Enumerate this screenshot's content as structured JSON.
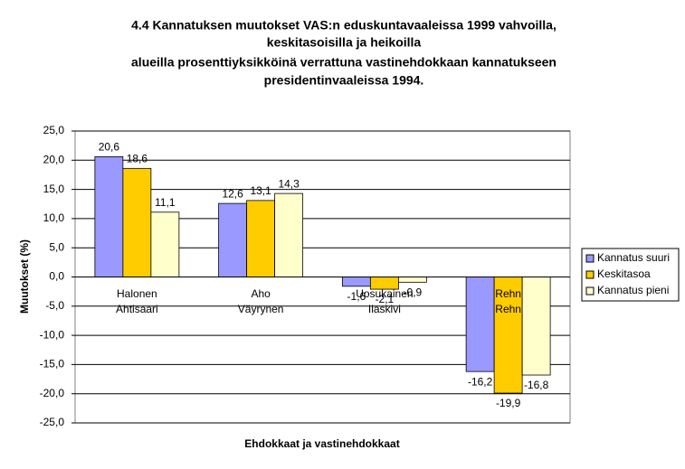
{
  "chart_data": {
    "type": "bar",
    "title": [
      "4.4 Kannatuksen muutokset VAS:n eduskuntavaaleissa 1999 vahvoilla,",
      "keskitasoisilla ja heikoilla",
      "alueilla prosenttiyksikköinä verrattuna vastinehdokkaan kannatukseen",
      "presidentinvaaleissa 1994."
    ],
    "x_label": "Ehdokkaat ja vastinehdokkaat",
    "y_label": "Muutokset (%)",
    "categories": [
      [
        "Halonen",
        "Ahtisaari"
      ],
      [
        "Aho",
        "Väyrynen"
      ],
      [
        "Uosukainen",
        "Ilaskivi"
      ],
      [
        "Rehn",
        "Rehn"
      ]
    ],
    "series": [
      {
        "name": "Kannatus suuri",
        "color": "#9999ff",
        "values": [
          20.6,
          12.6,
          -1.6,
          -16.2
        ],
        "value_labels": [
          "20,6",
          "12,6",
          "-1,6",
          "-16,2"
        ]
      },
      {
        "name": "Keskitasoa",
        "color": "#ffcc00",
        "values": [
          18.6,
          13.1,
          -2.1,
          -19.9
        ],
        "value_labels": [
          "18,6",
          "13,1",
          "-2,1",
          "-19,9"
        ]
      },
      {
        "name": "Kannatus pieni",
        "color": "#ffffcc",
        "values": [
          11.1,
          14.3,
          -0.9,
          -16.8
        ],
        "value_labels": [
          "11,1",
          "14,3",
          "-0,9",
          "-16,8"
        ]
      }
    ],
    "ylim": [
      -25,
      25
    ],
    "yticks": [
      {
        "value": -25,
        "label": "-25,0"
      },
      {
        "value": -20,
        "label": "-20,0"
      },
      {
        "value": -15,
        "label": "-15,0"
      },
      {
        "value": -10,
        "label": "-10,0"
      },
      {
        "value": -5,
        "label": "-5,0"
      },
      {
        "value": 0,
        "label": "0,0"
      },
      {
        "value": 5,
        "label": "5,0"
      },
      {
        "value": 10,
        "label": "10,0"
      },
      {
        "value": 15,
        "label": "15,0"
      },
      {
        "value": 20,
        "label": "20,0"
      },
      {
        "value": 25,
        "label": "25,0"
      }
    ],
    "grid": true,
    "legend": "right"
  }
}
